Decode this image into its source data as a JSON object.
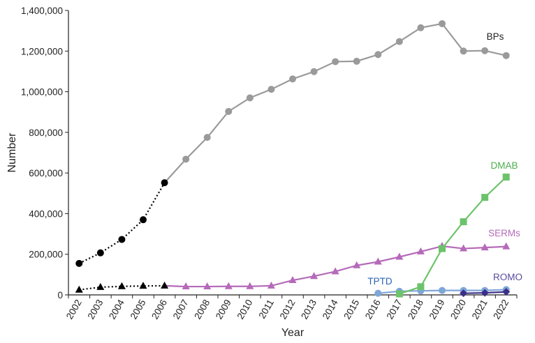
{
  "chart_data": {
    "type": "line",
    "title": "",
    "xlabel": "Year",
    "ylabel": "Number",
    "ylim": [
      0,
      1400000
    ],
    "y_ticks": [
      0,
      200000,
      400000,
      600000,
      800000,
      1000000,
      1200000,
      1400000
    ],
    "y_tick_labels": [
      "0",
      "200,000",
      "400,000",
      "600,000",
      "800,000",
      "1,000,000",
      "1,200,000",
      "1,400,000"
    ],
    "x": [
      2002,
      2003,
      2004,
      2005,
      2006,
      2007,
      2008,
      2009,
      2010,
      2011,
      2012,
      2013,
      2014,
      2015,
      2016,
      2017,
      2018,
      2019,
      2020,
      2021,
      2022
    ],
    "x_tick_labels": [
      "2002",
      "2003",
      "2004",
      "2005",
      "2006",
      "2007",
      "2008",
      "2009",
      "2010",
      "2011",
      "2012",
      "2013",
      "2014",
      "2015",
      "2016",
      "2017",
      "2018",
      "2019",
      "2020",
      "2021",
      "2022"
    ],
    "grid": false,
    "legend": "inline labels",
    "series": [
      {
        "name": "BPs",
        "color": "#9a9a9a",
        "label_color": "#222222",
        "marker": "circle",
        "values": [
          155000,
          207000,
          273000,
          370000,
          552000,
          668000,
          775000,
          903000,
          970000,
          1012000,
          1063000,
          1099000,
          1148000,
          1150000,
          1183000,
          1247000,
          1315000,
          1335000,
          1200000,
          1202000,
          1178000
        ],
        "early_segment_end_index": 4,
        "early_color": "#000000",
        "early_marker": "circle"
      },
      {
        "name": "SERMs",
        "color": "#b56ab9",
        "label_color": "#b56ab9",
        "marker": "triangle",
        "values": [
          25000,
          38000,
          42000,
          44000,
          45000,
          41000,
          41000,
          42000,
          42000,
          45000,
          72000,
          92000,
          115000,
          145000,
          163000,
          187000,
          213000,
          240000,
          228000,
          233000,
          238000
        ],
        "early_segment_end_index": 4,
        "early_color": "#000000",
        "early_marker": "triangle"
      },
      {
        "name": "DMAB",
        "color": "#6cc36b",
        "label_color": "#4cae4c",
        "marker": "square",
        "values": [
          null,
          null,
          null,
          null,
          null,
          null,
          null,
          null,
          null,
          null,
          null,
          null,
          null,
          null,
          null,
          5000,
          40000,
          228000,
          360000,
          480000,
          580000
        ]
      },
      {
        "name": "TPTD",
        "color": "#7ea6d8",
        "label_color": "#2a64b4",
        "marker": "circle",
        "values": [
          null,
          null,
          null,
          null,
          null,
          null,
          null,
          null,
          null,
          null,
          null,
          null,
          null,
          null,
          8000,
          18000,
          20000,
          22000,
          22000,
          22000,
          26000
        ]
      },
      {
        "name": "ROMO",
        "color": "#3b2e8a",
        "label_color": "#5a4a9e",
        "marker": "diamond",
        "values": [
          null,
          null,
          null,
          null,
          null,
          null,
          null,
          null,
          null,
          null,
          null,
          null,
          null,
          null,
          null,
          null,
          null,
          null,
          8000,
          10000,
          15000
        ]
      }
    ]
  }
}
